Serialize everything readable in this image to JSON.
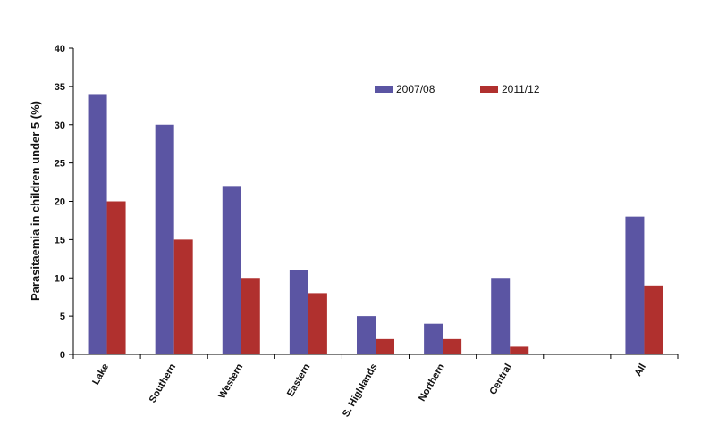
{
  "chart_data": {
    "type": "bar",
    "categories": [
      "Lake",
      "Southern",
      "Western",
      "Eastern",
      "S. Highlands",
      "Northern",
      "Central",
      "",
      "All"
    ],
    "series": [
      {
        "name": "2007/08",
        "color": "#5b55a3",
        "values": [
          34,
          30,
          22,
          11,
          5,
          4,
          10,
          null,
          18
        ]
      },
      {
        "name": "2011/12",
        "color": "#b0302e",
        "values": [
          20,
          15,
          10,
          8,
          2,
          2,
          1,
          null,
          9
        ]
      }
    ],
    "ylabel": "Parasitaemia in children under 5 (%)",
    "xlabel": "",
    "ylim": [
      0,
      40
    ],
    "yticks": [
      0,
      5,
      10,
      15,
      20,
      25,
      30,
      35,
      40
    ],
    "grid": false,
    "legend_position": "top-right"
  }
}
